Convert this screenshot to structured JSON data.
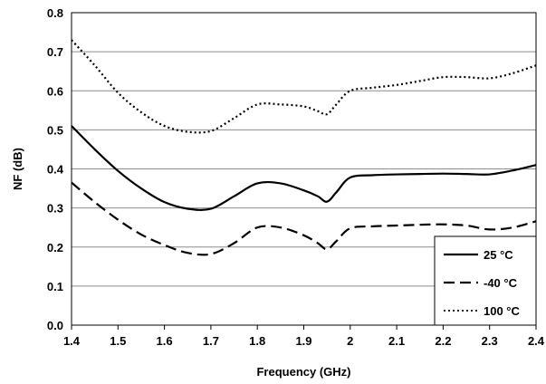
{
  "chart_data": {
    "type": "line",
    "title": "",
    "xlabel": "Frequency (GHz)",
    "ylabel": "NF (dB)",
    "xlim": [
      1.4,
      2.4
    ],
    "ylim": [
      0.0,
      0.8
    ],
    "xticks": [
      "1.4",
      "1.5",
      "1.6",
      "1.7",
      "1.8",
      "1.9",
      "2",
      "2.1",
      "2.2",
      "2.3",
      "2.4"
    ],
    "yticks": [
      "0.0",
      "0.1",
      "0.2",
      "0.3",
      "0.4",
      "0.5",
      "0.6",
      "0.7",
      "0.8"
    ],
    "grid": "horizontal",
    "legend_position": "bottom-right",
    "series": [
      {
        "name": "25 °C",
        "style": "solid",
        "color": "#000000",
        "x": [
          1.4,
          1.45,
          1.5,
          1.55,
          1.6,
          1.65,
          1.7,
          1.75,
          1.8,
          1.85,
          1.9,
          1.93,
          1.95,
          1.97,
          2.0,
          2.05,
          2.1,
          2.15,
          2.2,
          2.25,
          2.3,
          2.35,
          2.4
        ],
        "y": [
          0.51,
          0.45,
          0.395,
          0.35,
          0.315,
          0.298,
          0.298,
          0.33,
          0.363,
          0.363,
          0.345,
          0.33,
          0.316,
          0.34,
          0.378,
          0.384,
          0.386,
          0.387,
          0.388,
          0.387,
          0.386,
          0.396,
          0.41
        ]
      },
      {
        "name": "-40 °C",
        "style": "dashed",
        "color": "#000000",
        "x": [
          1.4,
          1.45,
          1.5,
          1.55,
          1.6,
          1.65,
          1.7,
          1.75,
          1.8,
          1.85,
          1.9,
          1.93,
          1.95,
          1.97,
          2.0,
          2.05,
          2.1,
          2.15,
          2.2,
          2.25,
          2.3,
          2.35,
          2.4
        ],
        "y": [
          0.365,
          0.315,
          0.27,
          0.232,
          0.205,
          0.185,
          0.182,
          0.21,
          0.25,
          0.25,
          0.23,
          0.21,
          0.194,
          0.215,
          0.248,
          0.253,
          0.255,
          0.257,
          0.258,
          0.255,
          0.245,
          0.25,
          0.266
        ]
      },
      {
        "name": "100 °C",
        "style": "dotted",
        "color": "#000000",
        "x": [
          1.4,
          1.45,
          1.5,
          1.55,
          1.6,
          1.65,
          1.7,
          1.75,
          1.8,
          1.85,
          1.9,
          1.93,
          1.95,
          1.97,
          2.0,
          2.05,
          2.1,
          2.15,
          2.2,
          2.25,
          2.3,
          2.35,
          2.4
        ],
        "y": [
          0.73,
          0.665,
          0.595,
          0.545,
          0.51,
          0.495,
          0.497,
          0.53,
          0.565,
          0.565,
          0.56,
          0.548,
          0.54,
          0.565,
          0.6,
          0.608,
          0.615,
          0.625,
          0.635,
          0.635,
          0.632,
          0.645,
          0.665
        ]
      }
    ]
  }
}
